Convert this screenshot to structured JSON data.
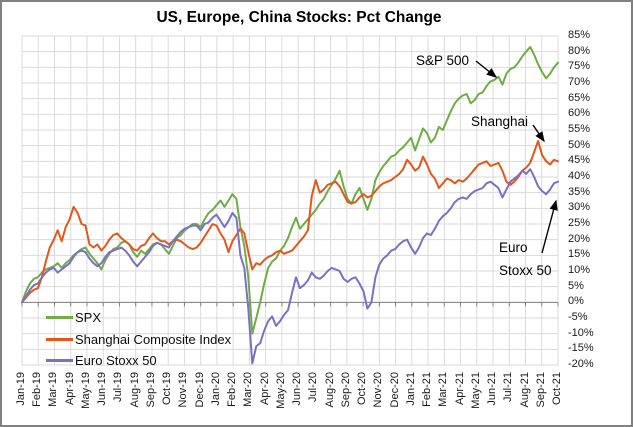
{
  "annotations": {
    "sp500": "S&P 500",
    "shanghai": "Shanghai",
    "euro_line1": "Euro",
    "euro_line2": "Stoxx 50"
  },
  "colors": {
    "spx": "#6FAC46",
    "shanghai": "#E4571C",
    "euro_stoxx": "#7A70C4",
    "gridline": "#DADADA",
    "axis": "#808080",
    "text": "#1a1a1a"
  },
  "chart_data": {
    "type": "line",
    "title": "US, Europe, China Stocks: Pct Change",
    "xlabel": "",
    "ylabel": "",
    "ylim": [
      -20,
      85
    ],
    "ytick_step": 5,
    "grid": true,
    "y_axis_side": "right",
    "legend_position": "inside-bottom-left",
    "y_tick_labels": [
      "85%",
      "80%",
      "75%",
      "70%",
      "65%",
      "60%",
      "55%",
      "50%",
      "45%",
      "40%",
      "35%",
      "30%",
      "25%",
      "20%",
      "15%",
      "10%",
      "5%",
      "0%",
      "-5%",
      "-10%",
      "-15%",
      "-20%"
    ],
    "x_labels": [
      "Jan-19",
      "Feb-19",
      "Mar-19",
      "Apr-19",
      "May-19",
      "Jun-19",
      "Jul-19",
      "Aug-19",
      "Sep-19",
      "Oct-19",
      "Nov-19",
      "Dec-19",
      "Jan-20",
      "Feb-20",
      "Mar-20",
      "Apr-20",
      "May-20",
      "Jun-20",
      "Jul-20",
      "Aug-20",
      "Sep-20",
      "Oct-20",
      "Nov-20",
      "Dec-20",
      "Jan-21",
      "Feb-21",
      "Mar-21",
      "Apr-21",
      "May-21",
      "Jun-21",
      "Jul-21",
      "Aug-21",
      "Sep-21",
      "Oct-21"
    ],
    "points_per_month": 4,
    "series": [
      {
        "name": "SPX",
        "color": "#6FAC46",
        "values": [
          0,
          3.5,
          6,
          7.5,
          8,
          9.5,
          10.5,
          11,
          11.5,
          12.5,
          11,
          12.5,
          13.5,
          15,
          16,
          17,
          17.5,
          15.5,
          14,
          12.5,
          10.5,
          13.5,
          15.5,
          17,
          17.5,
          19,
          19.5,
          18.5,
          16,
          14.5,
          16.5,
          15.5,
          17,
          18.5,
          19,
          18.5,
          17,
          15.5,
          18,
          20.5,
          21.5,
          23,
          24,
          25,
          25,
          24,
          26.5,
          28.5,
          29.5,
          31,
          32.5,
          30.5,
          32.5,
          34.5,
          33,
          24,
          18,
          8,
          -10,
          -5,
          0,
          6,
          11,
          13,
          14,
          16.5,
          18,
          20.5,
          24,
          27,
          23.5,
          25,
          26.5,
          28,
          29.5,
          31.5,
          33,
          35.5,
          37.5,
          39.5,
          42,
          37,
          33,
          31.5,
          34.5,
          36.5,
          33,
          29.5,
          33,
          39,
          41.5,
          43.5,
          45,
          46.5,
          47,
          48.5,
          49.5,
          51,
          52.5,
          48.5,
          52,
          55.5,
          54,
          51,
          52.5,
          56,
          55,
          58,
          61,
          63.5,
          65,
          66,
          66.5,
          63.5,
          64.5,
          66.5,
          67,
          69,
          70.5,
          71,
          72,
          69.5,
          73,
          74.5,
          75,
          76.5,
          78.5,
          80,
          81.5,
          79,
          76,
          73.5,
          71.5,
          73,
          75,
          76.5
        ]
      },
      {
        "name": "Shanghai Composite Index",
        "color": "#E4571C",
        "values": [
          0,
          1.5,
          3,
          4,
          4.5,
          8,
          13,
          17.5,
          20,
          23,
          19.5,
          24,
          26.5,
          30.5,
          28.5,
          25,
          24.5,
          18.5,
          17.5,
          18.5,
          16.5,
          18,
          20,
          21.5,
          22,
          20.5,
          19.5,
          18.5,
          17,
          16.5,
          18,
          18.5,
          20.5,
          22,
          20.5,
          19.5,
          19.5,
          18.5,
          19.5,
          20,
          19.5,
          18.5,
          17.5,
          17,
          17.5,
          19,
          21,
          23,
          25,
          24.5,
          22,
          20,
          16,
          19.5,
          21.5,
          23.5,
          22,
          16,
          10.5,
          12.5,
          12,
          13.5,
          14.5,
          15,
          16,
          16.5,
          15.5,
          16,
          16.5,
          18,
          19.5,
          21,
          23,
          34,
          39,
          35,
          36,
          37.5,
          38,
          38.5,
          37,
          34.5,
          32,
          31.5,
          32,
          33.5,
          34.5,
          33.5,
          34,
          35.5,
          37,
          38,
          38.5,
          39,
          40,
          41,
          42.5,
          45.5,
          44,
          42,
          43,
          46.5,
          44,
          41,
          39.5,
          36.5,
          38,
          39.5,
          39,
          38,
          39,
          38.5,
          39.5,
          41,
          42.5,
          44,
          44.5,
          45,
          43.5,
          44,
          44.5,
          42,
          38.5,
          37.5,
          38.5,
          40,
          42,
          43,
          44.5,
          48,
          51.5,
          47,
          45,
          44,
          45.5,
          45
        ]
      },
      {
        "name": "Euro Stoxx 50",
        "color": "#7A70C4",
        "values": [
          0,
          2,
          4,
          5.5,
          6,
          8,
          9.5,
          10.5,
          11,
          9.5,
          10.5,
          11.5,
          12.5,
          14.5,
          16,
          16.5,
          16,
          14,
          12.5,
          11.5,
          12.5,
          14.5,
          16,
          16.5,
          17,
          17.5,
          16.5,
          15,
          13,
          11.5,
          13,
          14.5,
          16,
          18,
          19,
          18.5,
          18,
          17.5,
          19.5,
          21,
          22.5,
          23.5,
          24,
          24.5,
          24.5,
          23,
          25,
          25.5,
          27,
          28,
          26,
          24,
          26,
          28.5,
          27,
          15,
          11,
          -2,
          -19.5,
          -14,
          -13,
          -9,
          -6,
          -4.5,
          -7.5,
          -6,
          -4,
          -2.5,
          3,
          8,
          4.5,
          5.5,
          7,
          9.5,
          8,
          7.5,
          8.5,
          10,
          11,
          10.5,
          10,
          7.5,
          6.5,
          7.5,
          8,
          6,
          3.5,
          -2,
          0,
          8,
          12,
          14,
          15,
          16.5,
          17,
          18.5,
          19.5,
          20,
          17.5,
          15.5,
          17.5,
          20.5,
          22,
          21.5,
          23.5,
          26,
          27.5,
          28.5,
          30,
          32,
          33,
          33.5,
          33,
          34.5,
          35.5,
          36,
          36.5,
          38,
          38.5,
          37.5,
          36.5,
          33.5,
          36,
          38.5,
          39.5,
          40.5,
          42,
          41,
          42.5,
          40,
          37,
          35.5,
          34.5,
          36,
          38,
          38.5
        ]
      }
    ]
  }
}
